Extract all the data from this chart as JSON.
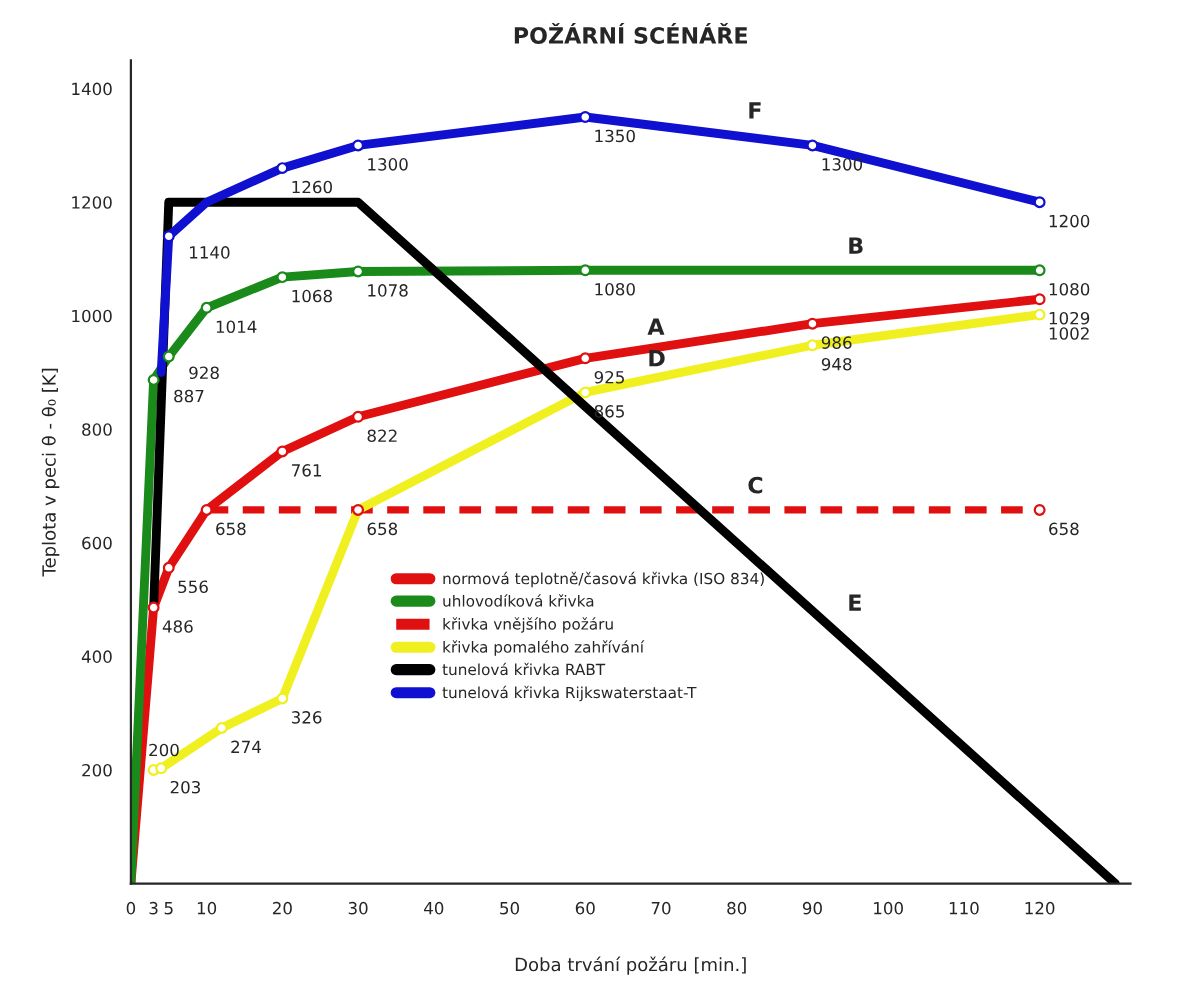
{
  "chart_data": {
    "type": "line",
    "title": "POŽÁRNÍ SCÉNÁŘE",
    "xlabel": "Doba trvání požáru [min.]",
    "ylabel": "Teplota v peci θ - θ₀ [K]",
    "xlim": [
      0,
      132
    ],
    "ylim": [
      0,
      1450
    ],
    "xticks": [
      0,
      3,
      5,
      10,
      20,
      30,
      40,
      50,
      60,
      70,
      80,
      90,
      100,
      110,
      120
    ],
    "yticks": [
      200,
      400,
      600,
      800,
      1000,
      1200,
      1400
    ],
    "grid": false,
    "legend": "center",
    "marker": "circle",
    "series": [
      {
        "name": "normová teplotně/časová křivka (ISO 834)",
        "color": "#e01010",
        "x": [
          0,
          3,
          5,
          10,
          20,
          30,
          60,
          90,
          120
        ],
        "values": [
          0,
          486,
          556,
          658,
          761,
          822,
          925,
          986,
          1029
        ],
        "value_labels": [
          null,
          "486",
          "556",
          "658",
          "761",
          "822",
          "925",
          "986",
          "1029"
        ]
      },
      {
        "name": "uhlovodíková křivka",
        "color": "#1a8a1a",
        "x": [
          0,
          3,
          5,
          10,
          20,
          30,
          60,
          120
        ],
        "values": [
          0,
          887,
          928,
          1014,
          1068,
          1078,
          1080,
          1080
        ],
        "value_labels": [
          null,
          "887",
          "928",
          "1014",
          "1068",
          "1078",
          "1080",
          "1080"
        ]
      },
      {
        "name": "křivka vnějšího požáru",
        "color": "#e01010",
        "line_style": "dashed",
        "x": [
          10,
          30,
          120
        ],
        "values": [
          658,
          658,
          658
        ],
        "value_labels": [
          null,
          "658",
          "658"
        ]
      },
      {
        "name": "křivka pomalého zahřívání",
        "color": "#f0f020",
        "x": [
          3,
          4,
          12,
          20,
          30,
          60,
          90,
          120
        ],
        "values": [
          200,
          203,
          274,
          326,
          658,
          865,
          948,
          1002
        ],
        "value_labels": [
          "200",
          "203",
          "274",
          "326",
          null,
          "865",
          "948",
          "1002"
        ]
      },
      {
        "name": "tunelová křivka RABT",
        "color": "#000000",
        "marker": "none",
        "x": [
          3,
          5,
          30,
          130
        ],
        "values": [
          486,
          1200,
          1200,
          0
        ]
      },
      {
        "name": "tunelová křivka Rijkswaterstaat-T",
        "color": "#1010d0",
        "x": [
          4,
          5,
          10,
          20,
          30,
          60,
          90,
          120
        ],
        "values": [
          900,
          1140,
          1200,
          1260,
          1300,
          1350,
          1300,
          1200
        ],
        "value_labels": [
          null,
          "1140",
          null,
          "1260",
          "1300",
          "1350",
          "1300",
          "1200"
        ]
      }
    ],
    "annotations": [
      "A",
      "B",
      "C",
      "D",
      "E",
      "F"
    ]
  }
}
